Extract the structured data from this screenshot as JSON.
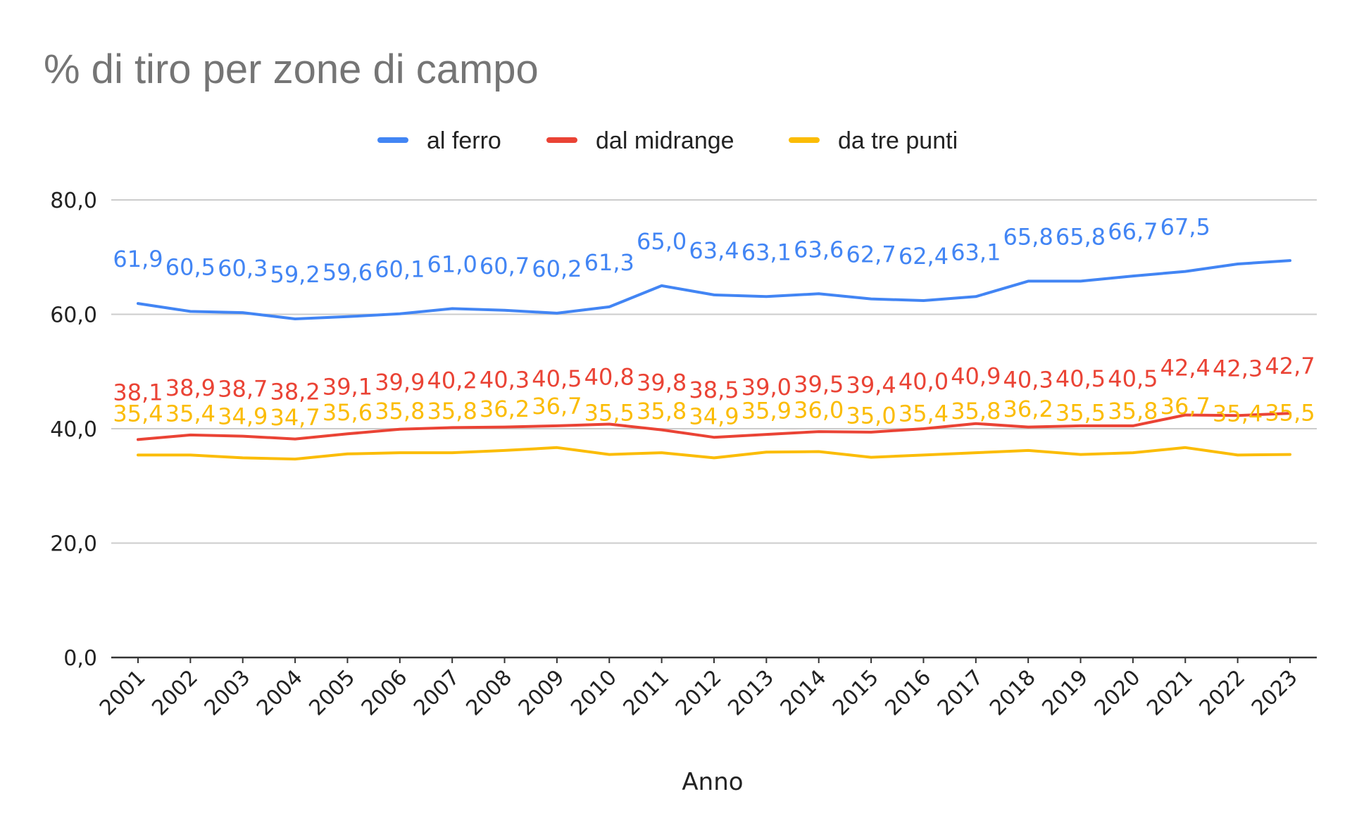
{
  "chart_data": {
    "type": "line",
    "title": "% di tiro per zone di campo",
    "xlabel": "Anno",
    "ylabel": "",
    "ylim": [
      0,
      80
    ],
    "yticks": [
      "0,0",
      "20,0",
      "40,0",
      "60,0",
      "80,0"
    ],
    "grid": true,
    "legend_position": "top",
    "categories": [
      "2001",
      "2002",
      "2003",
      "2004",
      "2005",
      "2006",
      "2007",
      "2008",
      "2009",
      "2010",
      "2011",
      "2012",
      "2013",
      "2014",
      "2015",
      "2016",
      "2017",
      "2018",
      "2019",
      "2020",
      "2021",
      "2022",
      "2023"
    ],
    "series": [
      {
        "name": "al ferro",
        "color": "#4285f4",
        "values": [
          61.9,
          60.5,
          60.3,
          59.2,
          59.6,
          60.1,
          61.0,
          60.7,
          60.2,
          61.3,
          65.0,
          63.4,
          63.1,
          63.6,
          62.7,
          62.4,
          63.1,
          65.8,
          65.8,
          66.7,
          67.5,
          68.8,
          69.4
        ],
        "labels": [
          "61,9",
          "60,5",
          "60,3",
          "59,2",
          "59,6",
          "60,1",
          "61,0",
          "60,7",
          "60,2",
          "61,3",
          "65,0",
          "63,4",
          "63,1",
          "63,6",
          "62,7",
          "62,4",
          "63,1",
          "65,8",
          "65,8",
          "66,7",
          "67,5",
          "",
          ""
        ]
      },
      {
        "name": "dal midrange",
        "color": "#ea4335",
        "values": [
          38.1,
          38.9,
          38.7,
          38.2,
          39.1,
          39.9,
          40.2,
          40.3,
          40.5,
          40.8,
          39.8,
          38.5,
          39.0,
          39.5,
          39.4,
          40.0,
          40.9,
          40.3,
          40.5,
          40.5,
          42.4,
          42.3,
          42.7
        ],
        "labels": [
          "38,1",
          "38,9",
          "38,7",
          "38,2",
          "39,1",
          "39,9",
          "40,2",
          "40,3",
          "40,5",
          "40,8",
          "39,8",
          "38,5",
          "39,0",
          "39,5",
          "39,4",
          "40,0",
          "40,9",
          "40,3",
          "40,5",
          "40,5",
          "42,4",
          "42,3",
          "42,7"
        ]
      },
      {
        "name": "da tre punti",
        "color": "#fbbc04",
        "values": [
          35.4,
          35.4,
          34.9,
          34.7,
          35.6,
          35.8,
          35.8,
          36.2,
          36.7,
          35.5,
          35.8,
          34.9,
          35.9,
          36.0,
          35.0,
          35.4,
          35.8,
          36.2,
          35.5,
          35.8,
          36.7,
          35.4,
          35.5
        ],
        "labels": [
          "35,4",
          "35,4",
          "34,9",
          "34,7",
          "35,6",
          "35,8",
          "35,8",
          "36,2",
          "36,7",
          "35,5",
          "35,8",
          "34,9",
          "35,9",
          "36,0",
          "35,0",
          "35,4",
          "35,8",
          "36,2",
          "35,5",
          "35,8",
          "36,7",
          "35,4",
          "35,5"
        ]
      }
    ]
  }
}
